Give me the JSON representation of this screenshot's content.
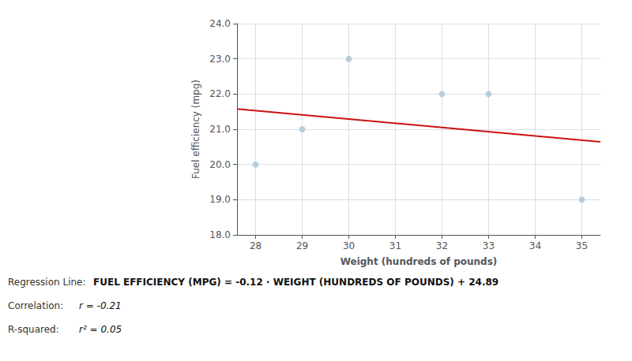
{
  "chart_data": {
    "type": "scatter",
    "xlabel": "Weight (hundreds of pounds)",
    "ylabel": "Fuel efficiency (mpg)",
    "series": [
      {
        "type": "scatter",
        "color": "#a8c4d4",
        "x": [
          28,
          29,
          30,
          32,
          33,
          35
        ],
        "values": [
          20.0,
          21.0,
          23.0,
          22.0,
          22.0,
          19.0
        ]
      },
      {
        "type": "line",
        "color": "#cc1111",
        "x": [
          27.6,
          35.4
        ],
        "values": [
          21.578,
          20.642
        ]
      }
    ],
    "xlim": [
      27.6,
      35.4
    ],
    "ylim": [
      18.0,
      24.0
    ],
    "xticks": [
      28,
      29,
      30,
      31,
      32,
      33,
      34,
      35
    ],
    "yticks": [
      {
        "value": 18.0,
        "label": "18.0"
      },
      {
        "value": 19.0,
        "label": "19.0"
      },
      {
        "value": 20.0,
        "label": "20.0"
      },
      {
        "value": 21.0,
        "label": "21.0"
      },
      {
        "value": 22.0,
        "label": "22.0"
      },
      {
        "value": 23.0,
        "label": "23.0"
      },
      {
        "value": 24.0,
        "label": "24.0"
      }
    ],
    "grid": true,
    "annotations": [
      [
        "Regression Line:",
        "FUEL EFFICIENCY (MPG) = -0.12 · WEIGHT (HUNDREDS OF POUNDS) + 24.89"
      ],
      [
        "Correlation:",
        "r = -0.21"
      ],
      [
        "R-squared:",
        "r² = 0.05"
      ]
    ]
  }
}
